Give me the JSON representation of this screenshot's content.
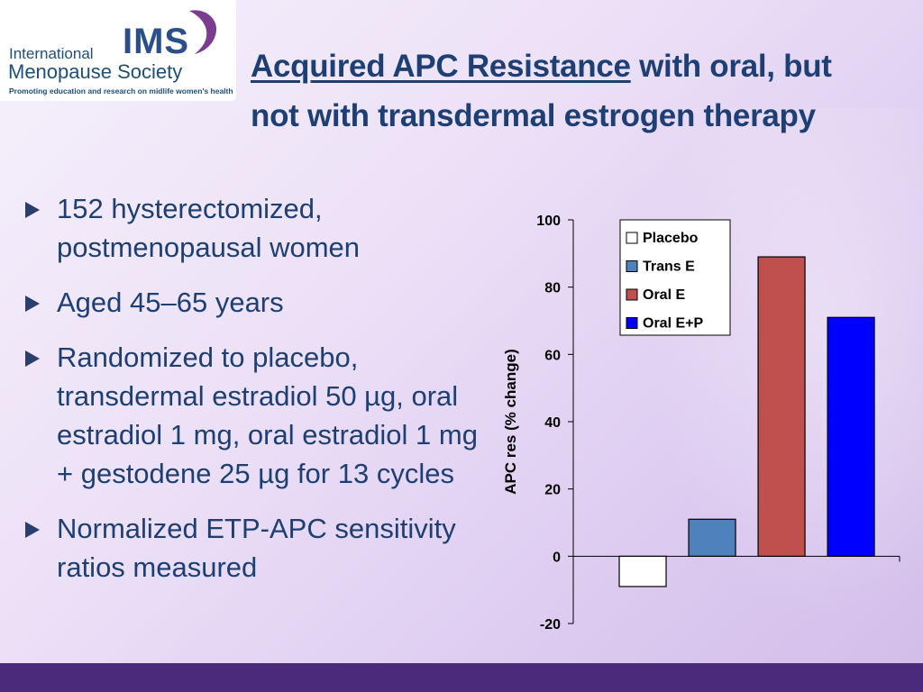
{
  "logo": {
    "line1": "International",
    "line2": "Menopause Society",
    "line3": "Promoting education and research on midlife women's health",
    "ims": "IMS"
  },
  "title": {
    "underlined": "Acquired APC Resistance",
    "rest_line1": " with oral, but",
    "line2": "not with transdermal estrogen therapy"
  },
  "bullets": [
    "152 hysterectomized, postmenopausal women",
    "Aged 45–65 years",
    "Randomized to placebo, transdermal estradiol 50 µg, oral estradiol 1 mg, oral estradiol 1 mg + gestodene 25 µg for 13 cycles",
    "Normalized ETP-APC sensitivity ratios measured"
  ],
  "chart_data": {
    "type": "bar",
    "categories": [
      "Placebo",
      "Trans E",
      "Oral E",
      "Oral E+P"
    ],
    "values": [
      -9,
      11,
      89,
      71
    ],
    "colors": [
      "#ffffff",
      "#4f81bd",
      "#c0504d",
      "#0000ff"
    ],
    "ylabel": "APC res (% change)",
    "ylim": [
      -20,
      100
    ],
    "yticks": [
      100,
      80,
      60,
      40,
      20,
      0,
      -20
    ],
    "legend_position": "top-right",
    "grid": false
  }
}
